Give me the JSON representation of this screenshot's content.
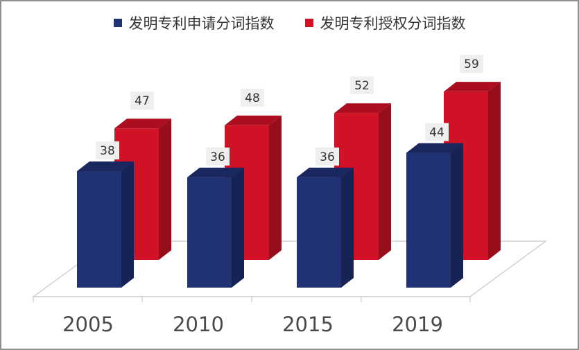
{
  "chart_data": {
    "type": "bar",
    "categories": [
      "2005",
      "2010",
      "2015",
      "2019"
    ],
    "series": [
      {
        "name": "发明专利申请分词指数",
        "values": [
          38,
          36,
          36,
          44
        ],
        "color": "#203174"
      },
      {
        "name": "发明专利授权分词指数",
        "values": [
          47,
          48,
          52,
          59
        ],
        "color": "#d11226"
      }
    ],
    "title": "",
    "xlabel": "",
    "ylabel": "",
    "legend_position": "top",
    "ylim": [
      0,
      60
    ],
    "grid": false,
    "style": "3d-column"
  }
}
